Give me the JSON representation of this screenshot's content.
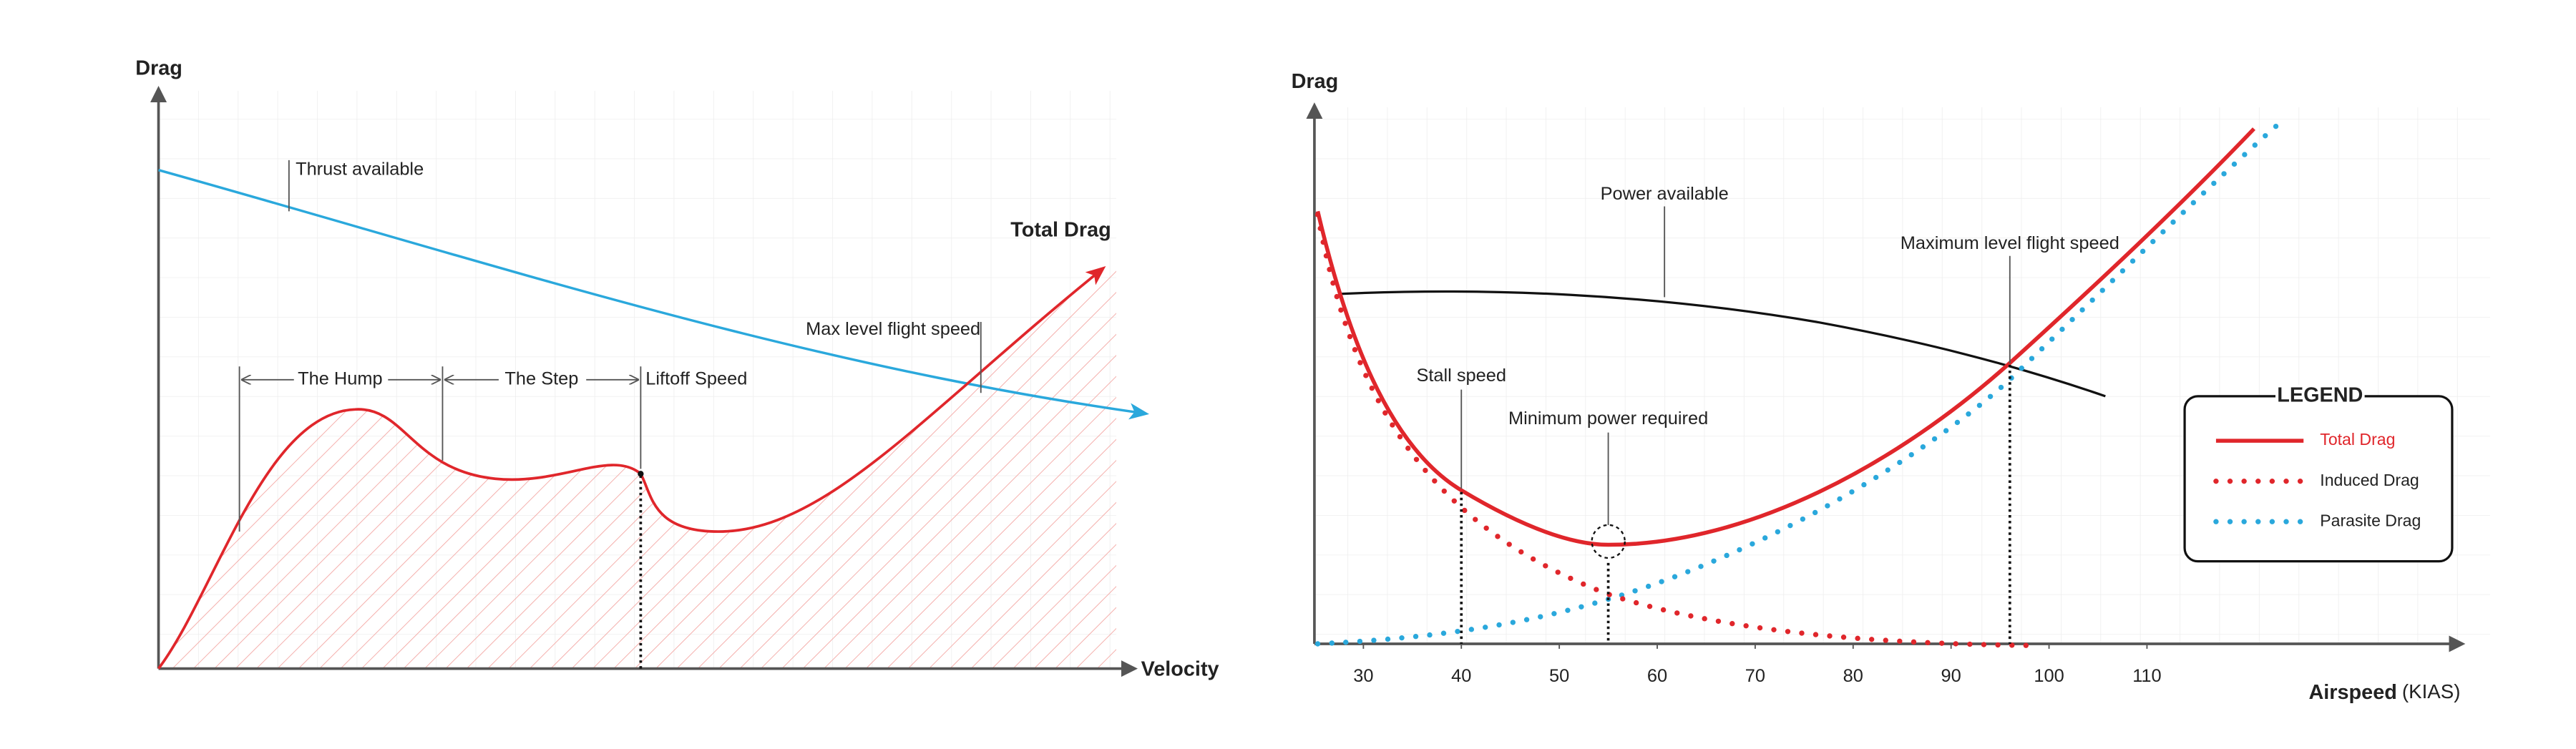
{
  "chart_data": [
    {
      "type": "line",
      "y_label": "Drag",
      "x_label": "Velocity",
      "annotations": [
        "Thrust available",
        "Total Drag",
        "The Hump",
        "The Step",
        "Liftoff Speed",
        "Max level flight speed"
      ]
    },
    {
      "type": "line",
      "y_label": "Drag",
      "x_label": "Airspeed",
      "x_unit": "(KIAS)",
      "xlim": [
        25,
        142
      ],
      "xticks": [
        30,
        40,
        50,
        60,
        70,
        80,
        90,
        100,
        110
      ],
      "legend": {
        "title": "LEGEND",
        "position": "right"
      },
      "series": [
        {
          "name": "Total Drag",
          "color": "#e0262b",
          "style": "solid"
        },
        {
          "name": "Induced Drag",
          "color": "#e0262b",
          "style": "dotted"
        },
        {
          "name": "Parasite Drag",
          "color": "#2aa8dc",
          "style": "dotted"
        }
      ],
      "annotations": [
        {
          "text": "Power available"
        },
        {
          "text": "Stall speed",
          "x": 40
        },
        {
          "text": "Minimum power required",
          "x": 55
        },
        {
          "text": "Maximum level flight speed",
          "x": 96
        }
      ]
    }
  ]
}
